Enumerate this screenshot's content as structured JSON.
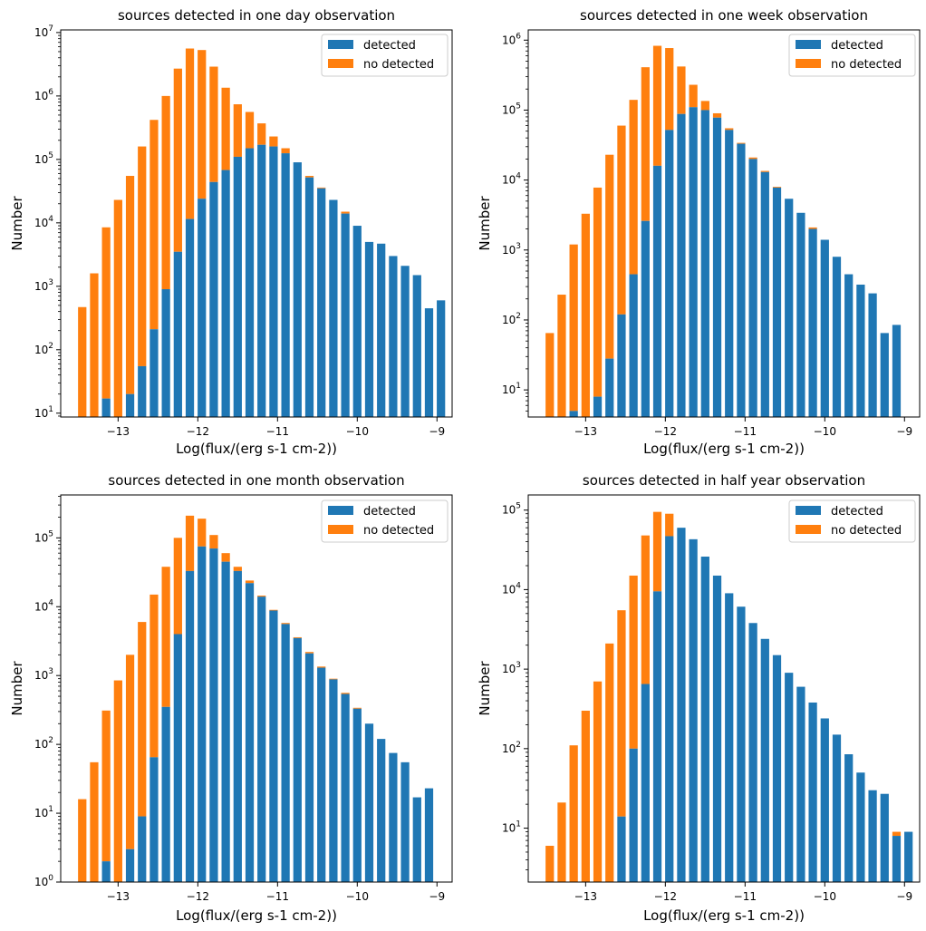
{
  "colors": {
    "detected": "#1f77b4",
    "no_detected": "#ff7f0e"
  },
  "chart_data": [
    {
      "type": "bar",
      "stacked": true,
      "title": "sources detected in one day observation",
      "xlabel": "Log(flux/(erg s-1 cm-2))",
      "ylabel": "Number",
      "yscale": "log",
      "xlim": [
        -13.72,
        -8.81
      ],
      "ylim": [
        8.7,
        11000000
      ],
      "xticks": [
        -13,
        -12,
        -11,
        -10,
        -9
      ],
      "xtick_labels": [
        "−13",
        "−12",
        "−11",
        "−10",
        "−9"
      ],
      "yticks": [
        10,
        100,
        1000,
        10000,
        100000,
        1000000,
        10000000
      ],
      "ytick_labels": [
        [
          "10",
          "1"
        ],
        [
          "10",
          "2"
        ],
        [
          "10",
          "3"
        ],
        [
          "10",
          "4"
        ],
        [
          "10",
          "5"
        ],
        [
          "10",
          "6"
        ],
        [
          "10",
          "7"
        ]
      ],
      "legend": [
        "detected",
        "no detected"
      ],
      "legend_position": "top-right",
      "x": [
        -13.45,
        -13.3,
        -13.15,
        -13.0,
        -12.85,
        -12.7,
        -12.55,
        -12.4,
        -12.25,
        -12.1,
        -11.95,
        -11.8,
        -11.65,
        -11.5,
        -11.35,
        -11.2,
        -11.05,
        -10.9,
        -10.75,
        -10.6,
        -10.45,
        -10.3,
        -10.15,
        -10.0,
        -9.85,
        -9.7,
        -9.55,
        -9.4,
        -9.25,
        -9.1,
        -8.95
      ],
      "series": [
        {
          "name": "detected",
          "values": [
            null,
            null,
            17,
            null,
            20,
            55,
            210,
            900,
            3500,
            11500,
            24000,
            44000,
            68000,
            110000,
            150000,
            170000,
            160000,
            125000,
            90000,
            52000,
            35000,
            23000,
            14000,
            9000,
            5000,
            4700,
            3000,
            2100,
            1500,
            450,
            600
          ]
        },
        {
          "name": "no detected",
          "values": [
            470,
            1600,
            8500,
            23000,
            55000,
            160000,
            420000,
            1000000,
            2700000,
            5600000,
            5300000,
            2900000,
            1350000,
            740000,
            560000,
            370000,
            230000,
            150000,
            90000,
            55000,
            36000,
            23000,
            15000,
            9000,
            5000,
            4700,
            3000,
            2100,
            1500,
            450,
            600
          ]
        }
      ]
    },
    {
      "type": "bar",
      "stacked": true,
      "title": "sources detected in one week observation",
      "xlabel": "Log(flux/(erg s-1 cm-2))",
      "ylabel": "Number",
      "yscale": "log",
      "xlim": [
        -13.72,
        -8.81
      ],
      "ylim": [
        4.1,
        1400000
      ],
      "xticks": [
        -13,
        -12,
        -11,
        -10,
        -9
      ],
      "xtick_labels": [
        "−13",
        "−12",
        "−11",
        "−10",
        "−9"
      ],
      "yticks": [
        10,
        100,
        1000,
        10000,
        100000,
        1000000
      ],
      "ytick_labels": [
        [
          "10",
          "1"
        ],
        [
          "10",
          "2"
        ],
        [
          "10",
          "3"
        ],
        [
          "10",
          "4"
        ],
        [
          "10",
          "5"
        ],
        [
          "10",
          "6"
        ]
      ],
      "legend": [
        "detected",
        "no detected"
      ],
      "legend_position": "top-right",
      "x": [
        -13.45,
        -13.3,
        -13.15,
        -13.0,
        -12.85,
        -12.7,
        -12.55,
        -12.4,
        -12.25,
        -12.1,
        -11.95,
        -11.8,
        -11.65,
        -11.5,
        -11.35,
        -11.2,
        -11.05,
        -10.9,
        -10.75,
        -10.6,
        -10.45,
        -10.3,
        -10.15,
        -10.0,
        -9.85,
        -9.7,
        -9.55,
        -9.4,
        -9.25,
        -9.1,
        -8.95
      ],
      "series": [
        {
          "name": "detected",
          "values": [
            null,
            null,
            5,
            null,
            8,
            28,
            120,
            450,
            2600,
            16000,
            52000,
            88000,
            110000,
            100000,
            78000,
            52000,
            33000,
            20000,
            13000,
            7800,
            5400,
            3400,
            2000,
            1400,
            800,
            450,
            320,
            240,
            65,
            85,
            null
          ]
        },
        {
          "name": "no detected",
          "values": [
            65,
            230,
            1200,
            3300,
            7800,
            23000,
            60000,
            140000,
            410000,
            830000,
            770000,
            420000,
            230000,
            135000,
            90000,
            55000,
            34000,
            21000,
            13500,
            8000,
            5400,
            3400,
            2100,
            1400,
            800,
            450,
            320,
            240,
            65,
            85,
            null
          ]
        }
      ]
    },
    {
      "type": "bar",
      "stacked": true,
      "title": "sources detected in one month observation",
      "xlabel": "Log(flux/(erg s-1 cm-2))",
      "ylabel": "Number",
      "yscale": "log",
      "xlim": [
        -13.72,
        -8.81
      ],
      "ylim": [
        1,
        420000
      ],
      "xticks": [
        -13,
        -12,
        -11,
        -10,
        -9
      ],
      "xtick_labels": [
        "−13",
        "−12",
        "−11",
        "−10",
        "−9"
      ],
      "yticks": [
        1,
        10,
        100,
        1000,
        10000,
        100000
      ],
      "ytick_labels": [
        [
          "10",
          "0"
        ],
        [
          "10",
          "1"
        ],
        [
          "10",
          "2"
        ],
        [
          "10",
          "3"
        ],
        [
          "10",
          "4"
        ],
        [
          "10",
          "5"
        ]
      ],
      "legend": [
        "detected",
        "no detected"
      ],
      "legend_position": "top-right",
      "x": [
        -13.45,
        -13.3,
        -13.15,
        -13.0,
        -12.85,
        -12.7,
        -12.55,
        -12.4,
        -12.25,
        -12.1,
        -11.95,
        -11.8,
        -11.65,
        -11.5,
        -11.35,
        -11.2,
        -11.05,
        -10.9,
        -10.75,
        -10.6,
        -10.45,
        -10.3,
        -10.15,
        -10.0,
        -9.85,
        -9.7,
        -9.55,
        -9.4,
        -9.25,
        -9.1,
        -8.95
      ],
      "series": [
        {
          "name": "detected",
          "values": [
            null,
            null,
            2,
            null,
            3,
            9,
            65,
            350,
            4000,
            33000,
            75000,
            70000,
            45000,
            33000,
            22000,
            14000,
            8800,
            5600,
            3500,
            2100,
            1300,
            880,
            540,
            330,
            200,
            120,
            75,
            55,
            17,
            23,
            null
          ]
        },
        {
          "name": "no detected",
          "values": [
            16,
            55,
            310,
            850,
            2000,
            6000,
            15000,
            38000,
            100000,
            210000,
            190000,
            110000,
            60000,
            38000,
            24000,
            14500,
            9000,
            5800,
            3600,
            2200,
            1350,
            900,
            560,
            340,
            200,
            120,
            75,
            55,
            17,
            23,
            null
          ]
        }
      ]
    },
    {
      "type": "bar",
      "stacked": true,
      "title": "sources detected in half year observation",
      "xlabel": "Log(flux/(erg s-1 cm-2))",
      "ylabel": "Number",
      "yscale": "log",
      "xlim": [
        -13.72,
        -8.81
      ],
      "ylim": [
        2.1,
        155000
      ],
      "xticks": [
        -13,
        -12,
        -11,
        -10,
        -9
      ],
      "xtick_labels": [
        "−13",
        "−12",
        "−11",
        "−10",
        "−9"
      ],
      "yticks": [
        10,
        100,
        1000,
        10000,
        100000
      ],
      "ytick_labels": [
        [
          "10",
          "1"
        ],
        [
          "10",
          "2"
        ],
        [
          "10",
          "3"
        ],
        [
          "10",
          "4"
        ],
        [
          "10",
          "5"
        ]
      ],
      "legend": [
        "detected",
        "no detected"
      ],
      "legend_position": "top-right",
      "x": [
        -13.45,
        -13.3,
        -13.15,
        -13.0,
        -12.85,
        -12.7,
        -12.55,
        -12.4,
        -12.25,
        -12.1,
        -11.95,
        -11.8,
        -11.65,
        -11.5,
        -11.35,
        -11.2,
        -11.05,
        -10.9,
        -10.75,
        -10.6,
        -10.45,
        -10.3,
        -10.15,
        -10.0,
        -9.85,
        -9.7,
        -9.55,
        -9.4,
        -9.25,
        -9.1,
        -8.95
      ],
      "series": [
        {
          "name": "detected",
          "values": [
            null,
            null,
            null,
            null,
            null,
            null,
            14,
            100,
            650,
            9500,
            47000,
            60000,
            43000,
            26000,
            15000,
            9000,
            6100,
            3800,
            2400,
            1500,
            900,
            600,
            380,
            240,
            150,
            85,
            50,
            30,
            27,
            8,
            9
          ]
        },
        {
          "name": "no detected",
          "values": [
            6,
            21,
            110,
            300,
            700,
            2100,
            5500,
            15000,
            48000,
            95000,
            90000,
            50000,
            29000,
            16500,
            10000,
            6400,
            3900,
            2500,
            1600,
            950,
            620,
            390,
            250,
            150,
            85,
            50,
            31,
            27,
            8,
            9,
            null
          ]
        }
      ]
    }
  ]
}
